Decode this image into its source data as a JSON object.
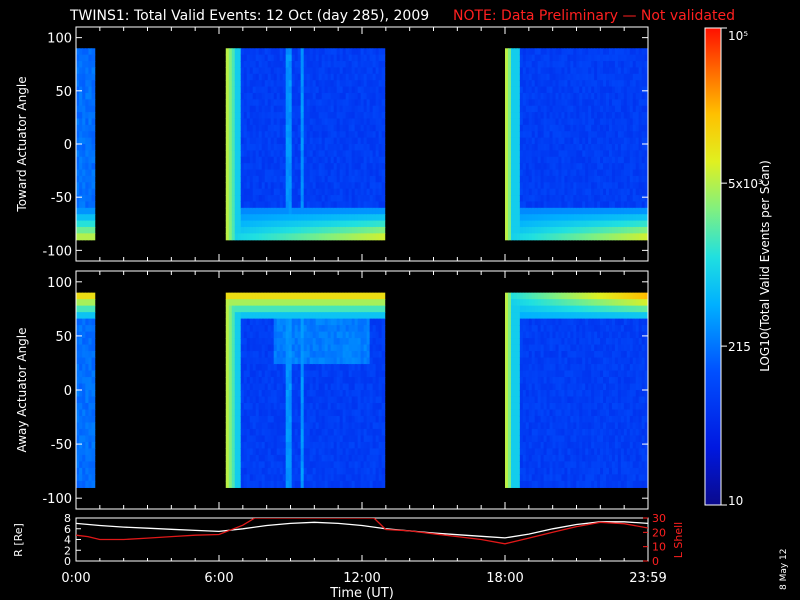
{
  "header": {
    "title": "TWINS1: Total Valid Events: 12 Oct (day 285), 2009",
    "note": "NOTE: Data Preliminary — Not validated"
  },
  "footer_date": "8 May 12",
  "colors": {
    "background": "#000000",
    "axes": "#ffffff",
    "note": "#ff2020",
    "r_line": "#ffffff",
    "l_shell_line": "#e01818"
  },
  "chart_data": [
    {
      "type": "heatmap",
      "panel": "toward",
      "ylabel": "Toward Actuator Angle",
      "xlim_hours": [
        0,
        24
      ],
      "ylim": [
        -110,
        110
      ],
      "yticks": [
        100,
        50,
        0,
        -50,
        -100
      ],
      "data_angle_range": [
        -90,
        90
      ],
      "data_blocks_ut": [
        {
          "start": "0:00",
          "end": "0:47"
        },
        {
          "start": "6:17",
          "end": "12:57"
        },
        {
          "start": "18:00",
          "end": "23:59"
        }
      ],
      "colorbar": {
        "label": "LOG10(Total Valid Events per Scan)",
        "log_range": [
          10,
          100000
        ],
        "tick_labels": [
          "10⁵",
          "5x10³",
          "215",
          "10"
        ],
        "tick_values": [
          100000,
          5000,
          215,
          10
        ]
      }
    },
    {
      "type": "heatmap",
      "panel": "away",
      "ylabel": "Away Actuator Angle",
      "xlim_hours": [
        0,
        24
      ],
      "ylim": [
        -110,
        110
      ],
      "yticks": [
        100,
        50,
        0,
        -50,
        -100
      ],
      "data_angle_range": [
        -90,
        90
      ],
      "data_blocks_ut": [
        {
          "start": "0:00",
          "end": "0:47"
        },
        {
          "start": "6:17",
          "end": "12:57"
        },
        {
          "start": "18:00",
          "end": "23:59"
        }
      ]
    },
    {
      "type": "line",
      "panel": "orbit",
      "xlabel": "Time (UT)",
      "xticks": [
        "0:00",
        "6:00",
        "12:00",
        "18:00",
        "23:59"
      ],
      "xtick_hours": [
        0,
        6,
        12,
        18,
        24
      ],
      "ylabel_left": "R [Re]",
      "ylim_left": [
        0,
        8
      ],
      "yticks_left": [
        0,
        2,
        4,
        6,
        8
      ],
      "ylabel_right": "L Shell",
      "ylim_right": [
        0,
        30
      ],
      "yticks_right": [
        0,
        10,
        20,
        30
      ],
      "series": [
        {
          "name": "R [Re]",
          "axis": "left",
          "x_hours": [
            0,
            1,
            2,
            3,
            4,
            5,
            6,
            7,
            8,
            9,
            10,
            11,
            12,
            13,
            14,
            15,
            16,
            17,
            18,
            19,
            20,
            21,
            22,
            23,
            24
          ],
          "values": [
            7.0,
            6.6,
            6.3,
            6.1,
            5.9,
            5.7,
            5.5,
            6.0,
            6.6,
            7.0,
            7.2,
            7.0,
            6.6,
            6.0,
            5.6,
            5.2,
            4.9,
            4.6,
            4.3,
            5.0,
            6.0,
            6.8,
            7.3,
            7.3,
            7.0
          ]
        },
        {
          "name": "L Shell",
          "axis": "right",
          "x_hours": [
            0,
            0.5,
            1,
            2,
            3,
            4,
            5,
            6,
            7,
            7.5,
            12.5,
            13,
            14,
            15,
            16,
            17,
            18,
            19,
            20,
            21,
            22,
            23,
            24
          ],
          "values": [
            18,
            17,
            15,
            15,
            16,
            17,
            18,
            18.5,
            25,
            30,
            30,
            22,
            21,
            19,
            17,
            15,
            12,
            16,
            20,
            24,
            27,
            26,
            23
          ]
        }
      ]
    }
  ]
}
